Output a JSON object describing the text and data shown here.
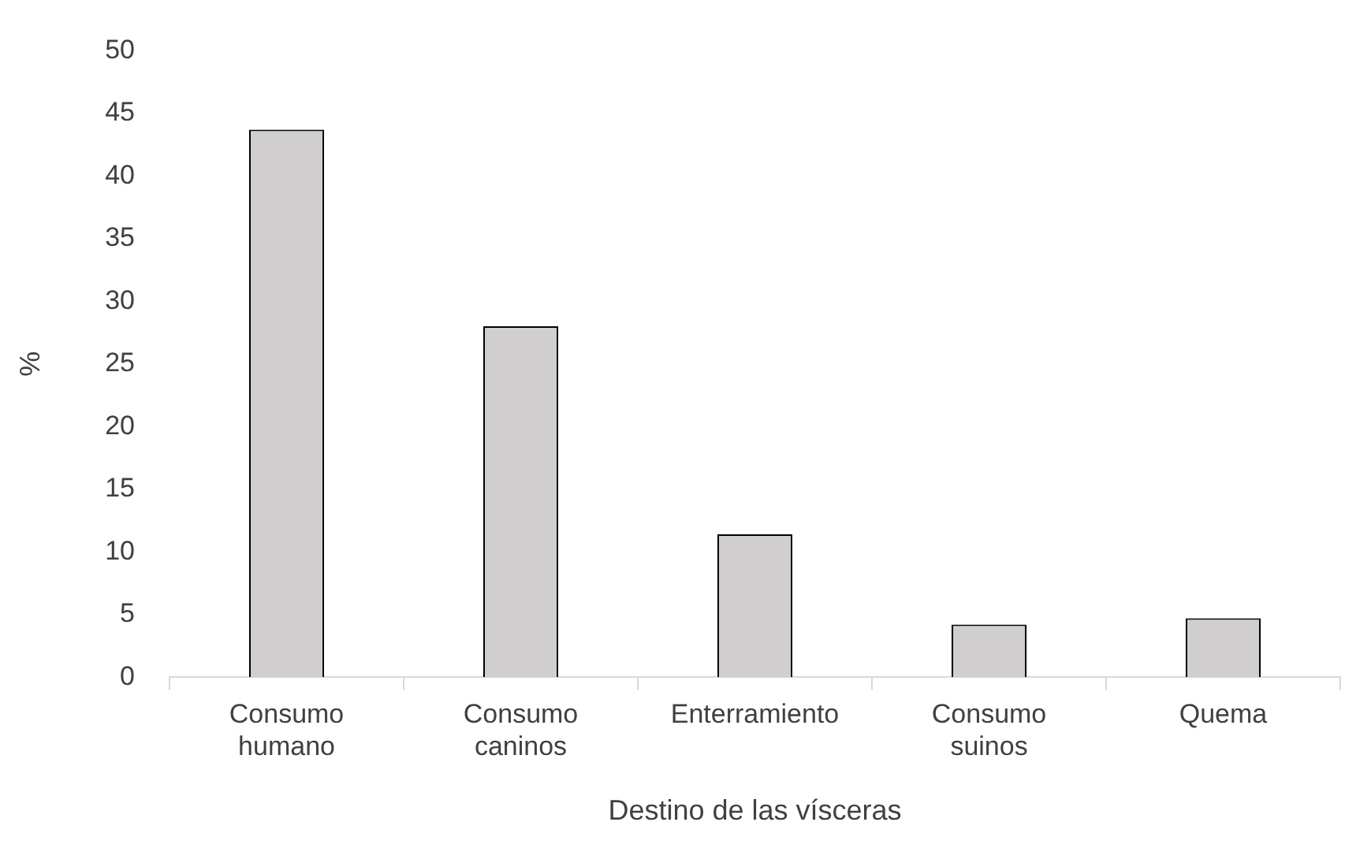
{
  "chart_data": {
    "type": "bar",
    "xlabel": "Destino de las vísceras",
    "ylabel": "%",
    "categories": [
      "Consumo humano",
      "Consumo caninos",
      "Enterramiento",
      "Consumo suinos",
      "Quema"
    ],
    "values": [
      43.7,
      28,
      11.4,
      4.2,
      4.7
    ],
    "color": "#d0cece",
    "ylim": [
      0,
      50
    ],
    "yticks": [
      0,
      5,
      10,
      15,
      20,
      25,
      30,
      35,
      40,
      45,
      50
    ],
    "grid": false
  }
}
